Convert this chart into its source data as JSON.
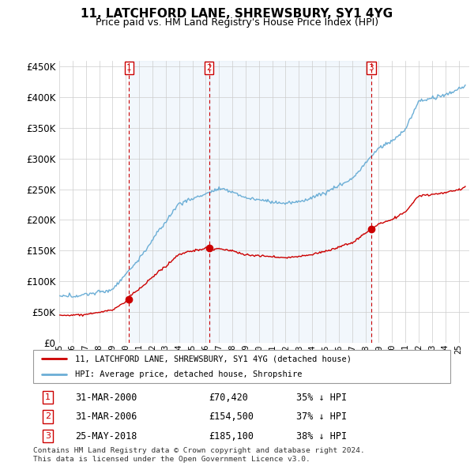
{
  "title": "11, LATCHFORD LANE, SHREWSBURY, SY1 4YG",
  "subtitle": "Price paid vs. HM Land Registry's House Price Index (HPI)",
  "title_fontsize": 11,
  "subtitle_fontsize": 9,
  "ytick_values": [
    0,
    50000,
    100000,
    150000,
    200000,
    250000,
    300000,
    350000,
    400000,
    450000
  ],
  "ylim": [
    0,
    460000
  ],
  "legend_line1": "11, LATCHFORD LANE, SHREWSBURY, SY1 4YG (detached house)",
  "legend_line2": "HPI: Average price, detached house, Shropshire",
  "sale_dates": [
    "31-MAR-2000",
    "31-MAR-2006",
    "25-MAY-2018"
  ],
  "sale_prices_display": [
    "£70,420",
    "£154,500",
    "£185,100"
  ],
  "sale_prices": [
    70420,
    154500,
    185100
  ],
  "sale_labels": [
    "1",
    "2",
    "3"
  ],
  "sale_hpi_pct": [
    "35% ↓ HPI",
    "37% ↓ HPI",
    "38% ↓ HPI"
  ],
  "footer_line1": "Contains HM Land Registry data © Crown copyright and database right 2024.",
  "footer_line2": "This data is licensed under the Open Government Licence v3.0.",
  "hpi_color": "#6baed6",
  "price_color": "#cc0000",
  "vline_color": "#cc0000",
  "background_color": "#ffffff",
  "grid_color": "#cccccc",
  "label_box_color": "#cc0000",
  "fill_color": "#ddeeff",
  "sale_year_vals": [
    2000.25,
    2006.25,
    2018.42
  ]
}
